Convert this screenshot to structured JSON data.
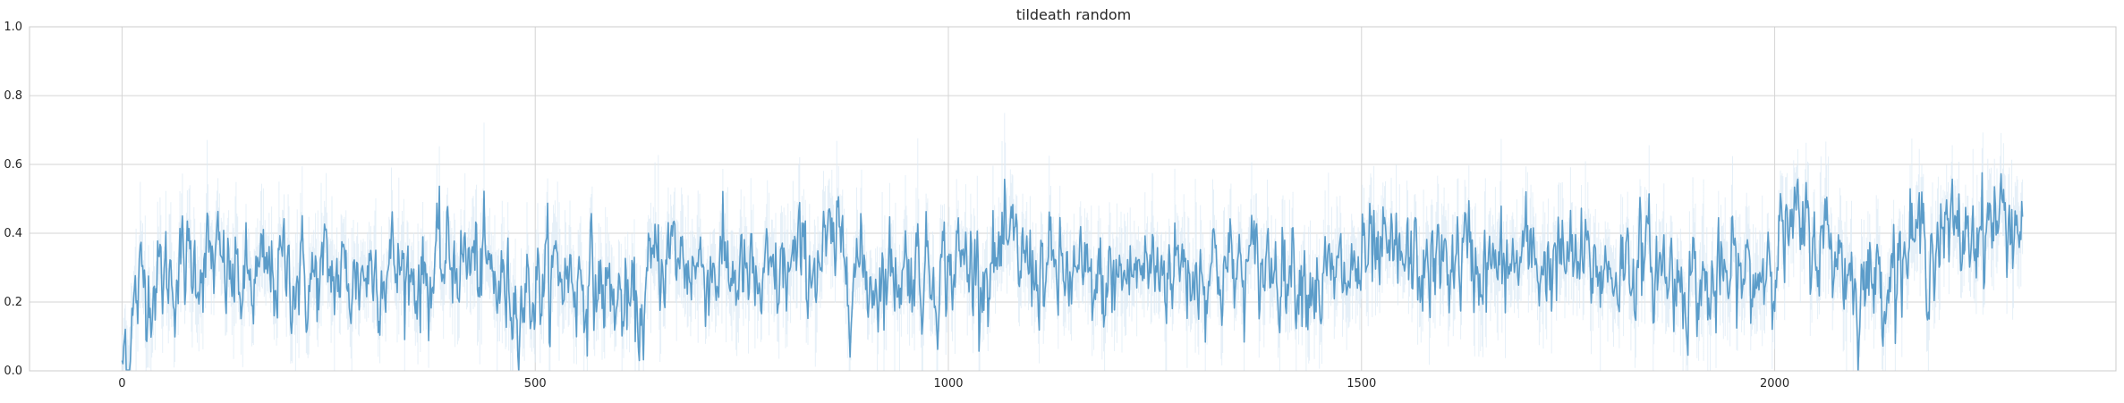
{
  "chart_data": {
    "type": "line",
    "title": "tildeath random",
    "xlabel": "",
    "ylabel": "",
    "xlim": [
      -112,
      2413
    ],
    "ylim": [
      0.0,
      1.0
    ],
    "xticks": [
      0,
      500,
      1000,
      1500,
      2000
    ],
    "xtick_labels": [
      "0",
      "500",
      "1000",
      "1500",
      "2000"
    ],
    "yticks": [
      0.0,
      0.2,
      0.4,
      0.6,
      0.8,
      1.0
    ],
    "ytick_labels": [
      "0.0",
      "0.2",
      "0.4",
      "0.6",
      "0.8",
      "1.0"
    ],
    "grid": true,
    "legend": false,
    "colors": {
      "line": "#5b9cc9",
      "band": "#dbe9f5",
      "grid": "#d5d5d5",
      "border": "#cccccc"
    },
    "series": [
      {
        "x": [
          0,
          25,
          50,
          75,
          100,
          125,
          150,
          175,
          200,
          225,
          250,
          275,
          300,
          325,
          350,
          375,
          400,
          425,
          450,
          475,
          500,
          525,
          550,
          575,
          600,
          625,
          650,
          675,
          700,
          725,
          750,
          775,
          800,
          825,
          850,
          875,
          900,
          925,
          950,
          975,
          1000,
          1025,
          1050,
          1075,
          1100,
          1125,
          1150,
          1175,
          1200,
          1225,
          1250,
          1275,
          1300,
          1325,
          1350,
          1375,
          1400,
          1425,
          1450,
          1475,
          1500,
          1525,
          1550,
          1575,
          1600,
          1625,
          1650,
          1675,
          1700,
          1725,
          1750,
          1775,
          1800,
          1825,
          1850,
          1875,
          1900,
          1925,
          1950,
          1975,
          2000,
          2025,
          2050,
          2075,
          2100,
          2125,
          2150,
          2175,
          2200,
          2225,
          2250,
          2275,
          2300
        ],
        "y": [
          0.05,
          0.26,
          0.27,
          0.3,
          0.33,
          0.28,
          0.24,
          0.27,
          0.3,
          0.25,
          0.28,
          0.26,
          0.3,
          0.31,
          0.28,
          0.27,
          0.33,
          0.31,
          0.26,
          0.22,
          0.24,
          0.29,
          0.27,
          0.25,
          0.2,
          0.15,
          0.34,
          0.33,
          0.3,
          0.31,
          0.27,
          0.22,
          0.28,
          0.31,
          0.33,
          0.35,
          0.27,
          0.28,
          0.31,
          0.29,
          0.3,
          0.32,
          0.3,
          0.34,
          0.31,
          0.28,
          0.27,
          0.23,
          0.26,
          0.29,
          0.3,
          0.31,
          0.29,
          0.31,
          0.28,
          0.3,
          0.32,
          0.3,
          0.25,
          0.26,
          0.3,
          0.31,
          0.32,
          0.29,
          0.31,
          0.33,
          0.3,
          0.29,
          0.33,
          0.31,
          0.32,
          0.3,
          0.29,
          0.32,
          0.31,
          0.28,
          0.27,
          0.22,
          0.28,
          0.26,
          0.38,
          0.4,
          0.38,
          0.36,
          0.24,
          0.27,
          0.33,
          0.38,
          0.38,
          0.39,
          0.43,
          0.44,
          0.43
        ]
      }
    ]
  }
}
